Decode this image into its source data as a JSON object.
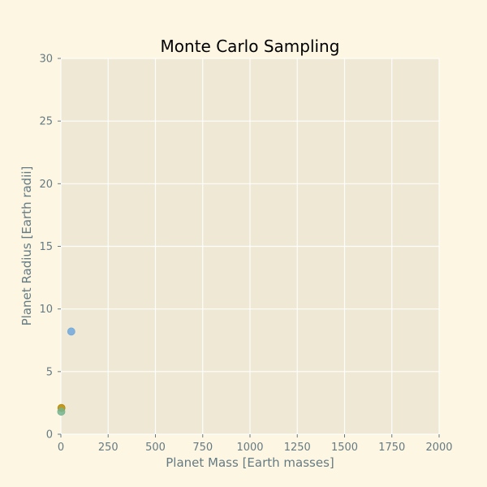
{
  "chart_data": {
    "type": "scatter",
    "title": "Monte Carlo Sampling",
    "xlabel": "Planet Mass [Earth masses]",
    "ylabel": "Planet Radius [Earth radii]",
    "xlim": [
      0,
      2000
    ],
    "ylim": [
      0,
      30
    ],
    "xticks": [
      0,
      250,
      500,
      750,
      1000,
      1250,
      1500,
      1750,
      2000
    ],
    "yticks": [
      0,
      5,
      10,
      15,
      20,
      25,
      30
    ],
    "grid": true,
    "colors": {
      "page_background": "#fdf6e3",
      "plot_background": "#eee8d5",
      "grid": "#fdfdfb",
      "axis_text": "#657b83"
    },
    "series": [
      {
        "color": "#6fa8dc",
        "points": [
          {
            "x": 55,
            "y": 8.2
          }
        ]
      },
      {
        "color": "#b58900",
        "points": [
          {
            "x": 3,
            "y": 2.1
          }
        ]
      },
      {
        "color": "#74b48f",
        "points": [
          {
            "x": 2,
            "y": 1.8
          }
        ]
      }
    ]
  }
}
